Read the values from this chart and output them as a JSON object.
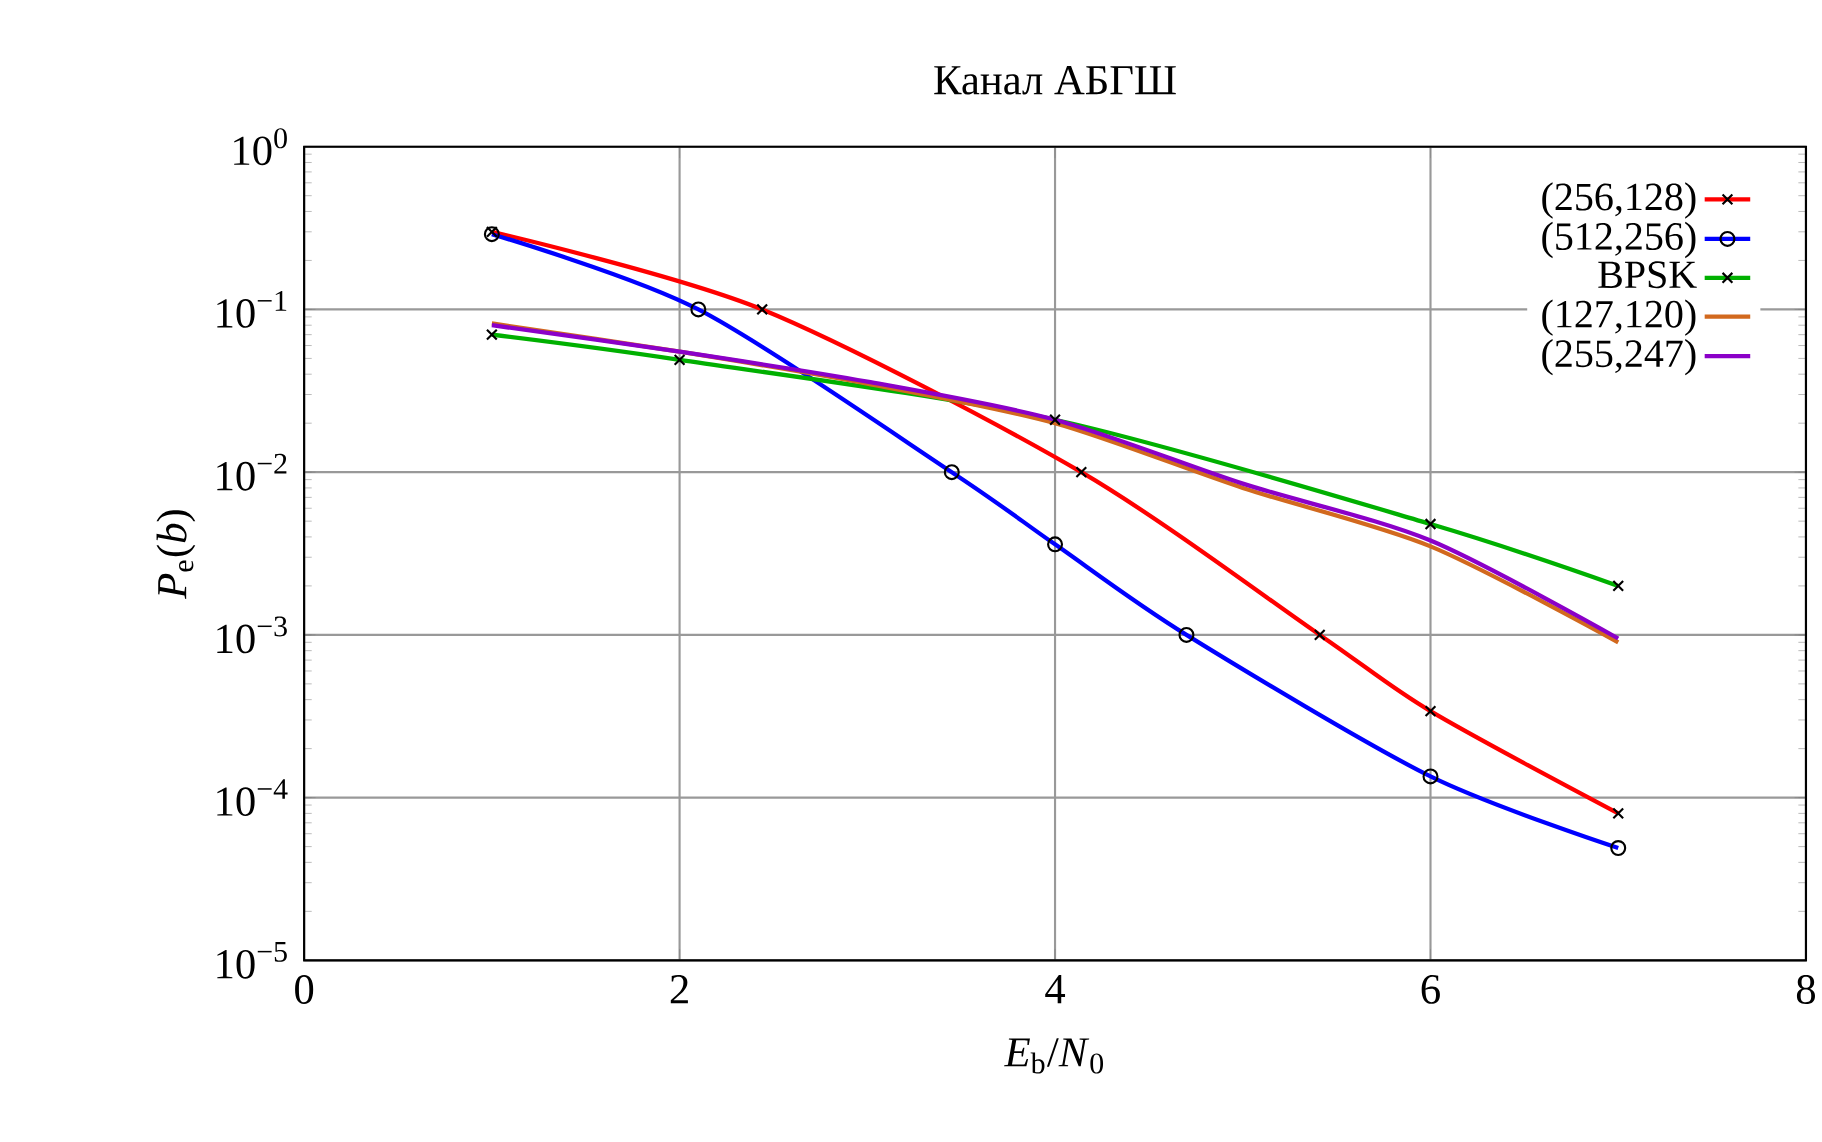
{
  "chart_data": {
    "type": "line",
    "title": "Канал АБГШ",
    "xlabel": "*E*$_{b}$/*N*$_{0}$",
    "ylabel": "*P*$_{e}$(*b*)",
    "xlim": [
      0,
      8
    ],
    "xticks": [
      0,
      2,
      4,
      6,
      8
    ],
    "ylim": [
      1e-05,
      1
    ],
    "log": "y",
    "yticks": [
      {
        "value": 1e-05,
        "label": "10$^{−5}$"
      },
      {
        "value": 0.0001,
        "label": "10$^{−4}$"
      },
      {
        "value": 0.001,
        "label": "10$^{−3}$"
      },
      {
        "value": 0.01,
        "label": "10$^{−2}$"
      },
      {
        "value": 0.1,
        "label": "10$^{−1}$"
      },
      {
        "value": 1,
        "label": "10$^{0}$"
      }
    ],
    "grid": true,
    "legend": "top right",
    "series": [
      {
        "name": "(256,128)",
        "color": "#ff0000",
        "marker": "cross",
        "x": [
          1,
          2.44,
          4.14,
          5.41,
          6,
          7
        ],
        "values": [
          0.3,
          0.1,
          0.01,
          0.001,
          0.00034,
          8e-05
        ]
      },
      {
        "name": "(512,256)",
        "color": "#0000ff",
        "marker": "circle",
        "x": [
          1,
          2.1,
          3.45,
          4,
          4.7,
          6,
          7
        ],
        "values": [
          0.29,
          0.1,
          0.01,
          0.0036,
          0.001,
          0.000135,
          4.9e-05
        ]
      },
      {
        "name": "BPSK",
        "color": "#00b000",
        "marker": "cross",
        "x": [
          1,
          2,
          4,
          6,
          7
        ],
        "values": [
          0.07,
          0.049,
          0.021,
          0.0048,
          0.002
        ]
      },
      {
        "name": "(127,120)",
        "color": "#d2691e",
        "marker": "none",
        "x": [
          1,
          2,
          3,
          4,
          5,
          6,
          7
        ],
        "values": [
          0.082,
          0.055,
          0.035,
          0.02,
          0.008,
          0.0035,
          0.0009
        ]
      },
      {
        "name": "(255,247)",
        "color": "#8b00c8",
        "marker": "none",
        "x": [
          1,
          2,
          3,
          4,
          5,
          6,
          7
        ],
        "values": [
          0.08,
          0.055,
          0.036,
          0.021,
          0.0085,
          0.0038,
          0.00095
        ]
      }
    ]
  }
}
